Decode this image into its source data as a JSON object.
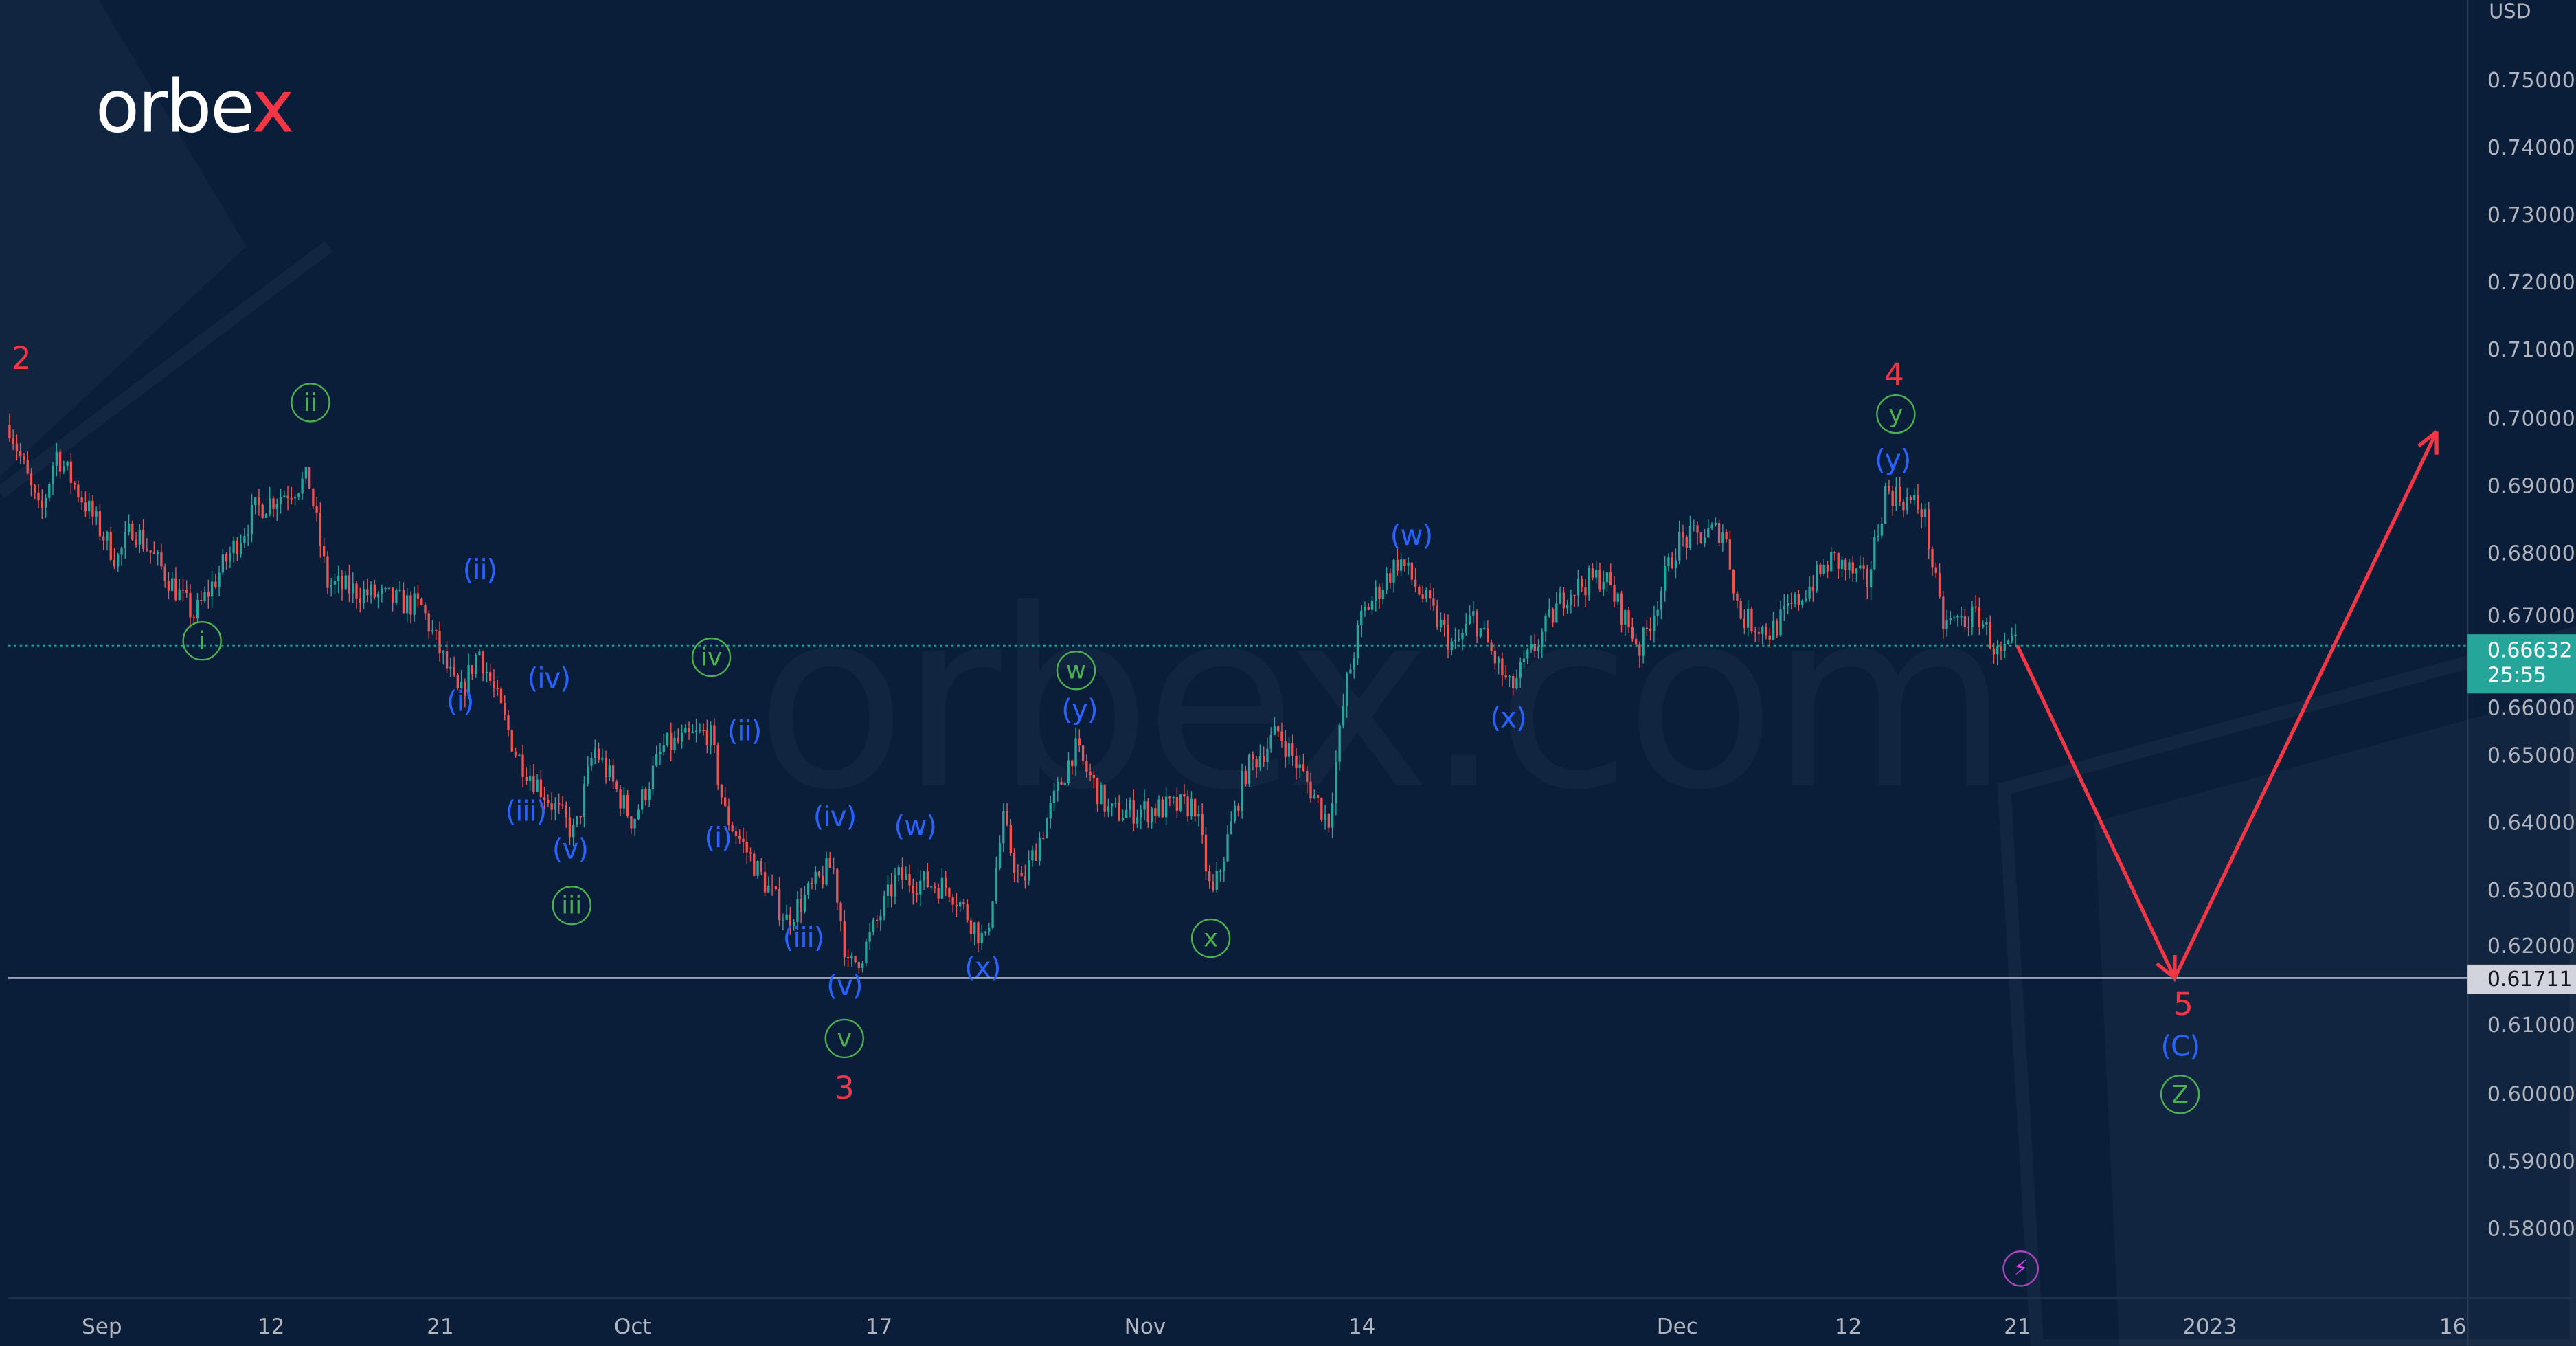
{
  "brand": {
    "logo_text": "orbe",
    "logo_accent": "x",
    "watermark": "orbex.com"
  },
  "chart_data": {
    "type": "candlestick",
    "currency": "USD",
    "y_axis": {
      "range": [
        0.575,
        0.755
      ],
      "ticks": [
        "0.75000",
        "0.74000",
        "0.73000",
        "0.72000",
        "0.71000",
        "0.70000",
        "0.69000",
        "0.68000",
        "0.67000",
        "0.66000",
        "0.65000",
        "0.64000",
        "0.63000",
        "0.62000",
        "0.61000",
        "0.60000",
        "0.59000",
        "0.58000"
      ]
    },
    "x_axis": {
      "ticks": [
        {
          "label": "Sep",
          "date": "2022-09-01"
        },
        {
          "label": "12",
          "date": "2022-09-12"
        },
        {
          "label": "21",
          "date": "2022-09-21"
        },
        {
          "label": "Oct",
          "date": "2022-10-01"
        },
        {
          "label": "17",
          "date": "2022-10-17"
        },
        {
          "label": "Nov",
          "date": "2022-11-01"
        },
        {
          "label": "14",
          "date": "2022-11-14"
        },
        {
          "label": "Dec",
          "date": "2022-12-01"
        },
        {
          "label": "12",
          "date": "2022-12-12"
        },
        {
          "label": "21",
          "date": "2022-12-21"
        },
        {
          "label": "2023",
          "date": "2023-01-01"
        },
        {
          "label": "16",
          "date": "2023-01-16"
        }
      ]
    },
    "price_path": [
      [
        "2022-08-26",
        0.699
      ],
      [
        "2022-08-28",
        0.6853
      ],
      [
        "2022-08-29",
        0.695
      ],
      [
        "2022-09-02",
        0.679
      ],
      [
        "2022-09-03",
        0.684
      ],
      [
        "2022-09-07",
        0.6707
      ],
      [
        "2022-09-11",
        0.6865
      ],
      [
        "2022-09-14",
        0.691
      ],
      [
        "2022-09-15",
        0.6755
      ],
      [
        "2022-09-20",
        0.672
      ],
      [
        "2022-09-22",
        0.6585
      ],
      [
        "2022-09-23",
        0.6658
      ],
      [
        "2022-09-25",
        0.65
      ],
      [
        "2022-09-28",
        0.6383
      ],
      [
        "2022-09-29",
        0.6512
      ],
      [
        "2022-10-01",
        0.6403
      ],
      [
        "2022-10-03",
        0.6512
      ],
      [
        "2022-10-06",
        0.6536
      ],
      [
        "2022-10-07",
        0.6415
      ],
      [
        "2022-10-11",
        0.6257
      ],
      [
        "2022-10-14",
        0.634
      ],
      [
        "2022-10-15",
        0.6184
      ],
      [
        "2022-10-16",
        0.621
      ],
      [
        "2022-10-18",
        0.632
      ],
      [
        "2022-10-21",
        0.6305
      ],
      [
        "2022-10-23",
        0.6222
      ],
      [
        "2022-10-24",
        0.6403
      ],
      [
        "2022-10-25",
        0.6305
      ],
      [
        "2022-10-28",
        0.6512
      ],
      [
        "2022-10-30",
        0.6415
      ],
      [
        "2022-11-04",
        0.6427
      ],
      [
        "2022-11-05",
        0.6286
      ],
      [
        "2022-11-07",
        0.6476
      ],
      [
        "2022-11-09",
        0.6536
      ],
      [
        "2022-11-12",
        0.6403
      ],
      [
        "2022-11-13",
        0.6597
      ],
      [
        "2022-11-14",
        0.6707
      ],
      [
        "2022-11-16",
        0.6792
      ],
      [
        "2022-11-19",
        0.6658
      ],
      [
        "2022-11-20",
        0.6707
      ],
      [
        "2022-11-22",
        0.6597
      ],
      [
        "2022-11-25",
        0.6743
      ],
      [
        "2022-11-27",
        0.6768
      ],
      [
        "2022-11-29",
        0.6658
      ],
      [
        "2022-12-01",
        0.6816
      ],
      [
        "2022-12-04",
        0.6836
      ],
      [
        "2022-12-05",
        0.6707
      ],
      [
        "2022-12-07",
        0.6683
      ],
      [
        "2022-12-11",
        0.6792
      ],
      [
        "2022-12-13",
        0.6755
      ],
      [
        "2022-12-14",
        0.6894
      ],
      [
        "2022-12-16",
        0.6865
      ],
      [
        "2022-12-17",
        0.6695
      ],
      [
        "2022-12-19",
        0.6707
      ],
      [
        "2022-12-20",
        0.6646
      ],
      [
        "2022-12-21",
        0.6663
      ]
    ],
    "current_price": {
      "value": "0.66632",
      "countdown": "25:55"
    },
    "level_line": {
      "value": "0.61711"
    },
    "projection": [
      [
        "2022-12-21",
        0.6663
      ],
      [
        "2022-12-30",
        0.6171
      ],
      [
        "2023-01-15",
        0.698
      ]
    ],
    "colors": {
      "up": "#26a69a",
      "down": "#ef5350",
      "projection": "#f23645",
      "background": "#0a1e3a",
      "wave_red": "#f23645",
      "wave_blue": "#2962ff",
      "wave_green": "#4caf50"
    },
    "wave_labels": [
      "2",
      "ii",
      "i",
      "(ii)",
      "(i)",
      "(iv)",
      "(iii)",
      "(v)",
      "iii",
      "iv",
      "(ii)",
      "(i)",
      "(iv)",
      "(iii)",
      "(v)",
      "v",
      "3",
      "(w)",
      "(x)",
      "w",
      "(y)",
      "x",
      "(w)",
      "(x)",
      "4",
      "y",
      "(y)",
      "5",
      "(C)",
      "Z"
    ]
  },
  "indicators": {
    "bolt_icon": "lightning-icon"
  }
}
